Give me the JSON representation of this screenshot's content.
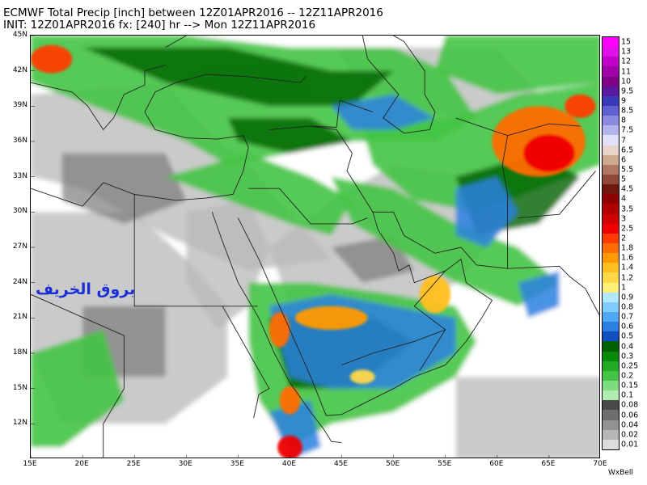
{
  "header": {
    "line1": "ECMWF Total Precip [inch] between 12Z01APR2016 -- 12Z11APR2016",
    "line2": "INIT: 12Z01APR2016 fx: [240] hr --> Mon 12Z11APR2016"
  },
  "watermark": "بروق الخريف",
  "credit": "WxBell",
  "chart_data": {
    "type": "heatmap",
    "title": "ECMWF Total Precip [inch] between 12Z01APR2016 -- 12Z11APR2016",
    "unit": "inch",
    "lat_ticks": [
      "45N",
      "42N",
      "39N",
      "36N",
      "33N",
      "30N",
      "27N",
      "24N",
      "21N",
      "18N",
      "15N",
      "12N"
    ],
    "lon_ticks": [
      "15E",
      "20E",
      "25E",
      "30E",
      "35E",
      "40E",
      "45E",
      "50E",
      "55E",
      "60E",
      "65E",
      "70E"
    ],
    "lat_range": [
      9,
      45
    ],
    "lon_range": [
      15,
      70
    ],
    "legend": [
      {
        "label": "15",
        "color": "#ff00ff"
      },
      {
        "label": "13",
        "color": "#e010e8"
      },
      {
        "label": "12",
        "color": "#c000c8"
      },
      {
        "label": "11",
        "color": "#a000a8"
      },
      {
        "label": "10",
        "color": "#800088"
      },
      {
        "label": "9.5",
        "color": "#5a1aa0"
      },
      {
        "label": "9",
        "color": "#3a3ab8"
      },
      {
        "label": "8.5",
        "color": "#5f5fd0"
      },
      {
        "label": "8",
        "color": "#8a8ae0"
      },
      {
        "label": "7.5",
        "color": "#b4b4ec"
      },
      {
        "label": "7",
        "color": "#e0e0f8"
      },
      {
        "label": "6.5",
        "color": "#e8d4c8"
      },
      {
        "label": "6",
        "color": "#cfa890"
      },
      {
        "label": "5.5",
        "color": "#b07860"
      },
      {
        "label": "5",
        "color": "#904838"
      },
      {
        "label": "4.5",
        "color": "#701810"
      },
      {
        "label": "4",
        "color": "#8c0000"
      },
      {
        "label": "3.5",
        "color": "#b00000"
      },
      {
        "label": "3",
        "color": "#d00000"
      },
      {
        "label": "2.5",
        "color": "#f00000"
      },
      {
        "label": "2",
        "color": "#ff3c00"
      },
      {
        "label": "1.8",
        "color": "#ff6c00"
      },
      {
        "label": "1.6",
        "color": "#ff9a00"
      },
      {
        "label": "1.4",
        "color": "#ffbf20"
      },
      {
        "label": "1.2",
        "color": "#ffd84a"
      },
      {
        "label": "1",
        "color": "#fff07a"
      },
      {
        "label": "0.9",
        "color": "#b0e8ff"
      },
      {
        "label": "0.8",
        "color": "#80ccff"
      },
      {
        "label": "0.7",
        "color": "#4ea8f0"
      },
      {
        "label": "0.6",
        "color": "#2a80e0"
      },
      {
        "label": "0.5",
        "color": "#1050c0"
      },
      {
        "label": "0.4",
        "color": "#006000"
      },
      {
        "label": "0.3",
        "color": "#0a8a0a"
      },
      {
        "label": "0.25",
        "color": "#22aa22"
      },
      {
        "label": "0.2",
        "color": "#44c444"
      },
      {
        "label": "0.15",
        "color": "#7ddc7d"
      },
      {
        "label": "0.1",
        "color": "#b0ecb0"
      },
      {
        "label": "0.08",
        "color": "#4a4a4a"
      },
      {
        "label": "0.06",
        "color": "#6e6e6e"
      },
      {
        "label": "0.04",
        "color": "#929292"
      },
      {
        "label": "0.02",
        "color": "#b6b6b6"
      },
      {
        "label": "0.01",
        "color": "#dcdcdc"
      }
    ]
  }
}
